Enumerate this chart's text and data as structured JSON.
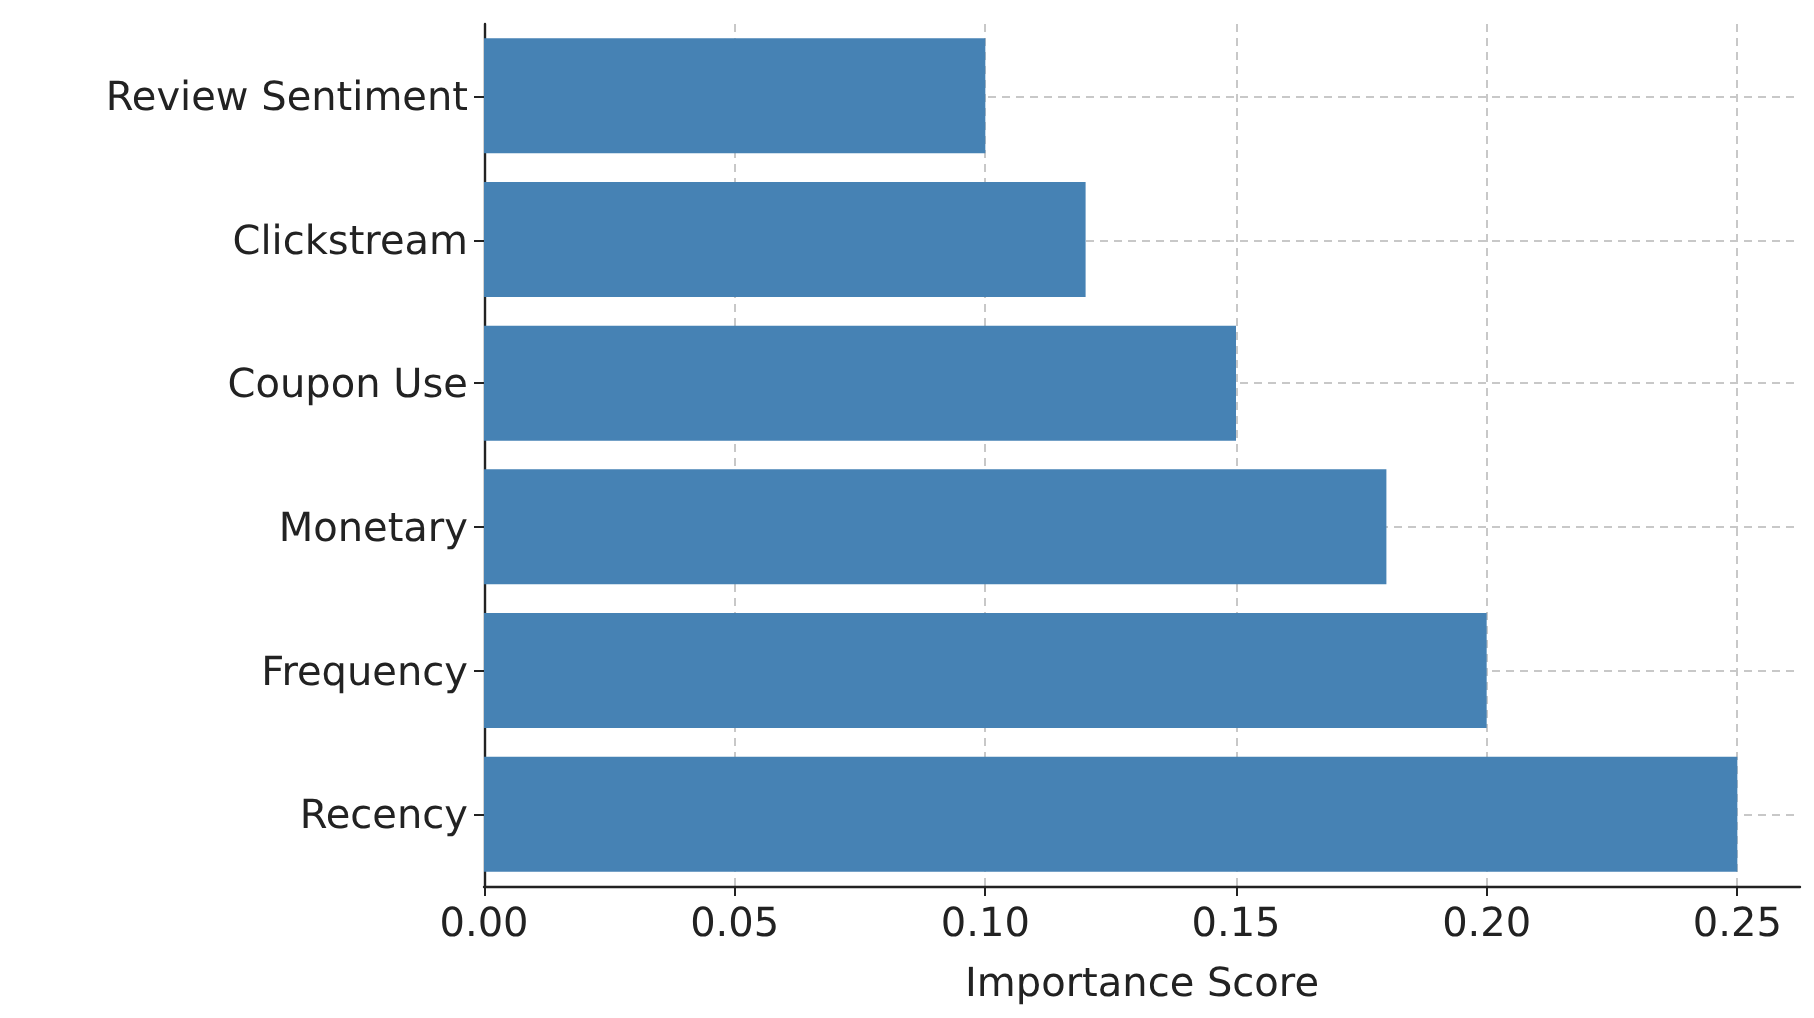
{
  "chart_data": {
    "type": "bar",
    "orientation": "horizontal",
    "xlabel": "Importance Score",
    "categories": [
      "Review Sentiment",
      "Clickstream",
      "Coupon Use",
      "Monetary",
      "Frequency",
      "Recency"
    ],
    "values": [
      0.1,
      0.12,
      0.15,
      0.18,
      0.2,
      0.25
    ],
    "color": "#4682b4",
    "xlim": [
      0,
      0.2625
    ],
    "xticks": [
      {
        "value": 0,
        "label": "0.00"
      },
      {
        "value": 0.05,
        "label": "0.05"
      },
      {
        "value": 0.1,
        "label": "0.10"
      },
      {
        "value": 0.15,
        "label": "0.15"
      },
      {
        "value": 0.2,
        "label": "0.20"
      },
      {
        "value": 0.25,
        "label": "0.25"
      }
    ],
    "grid": true
  }
}
